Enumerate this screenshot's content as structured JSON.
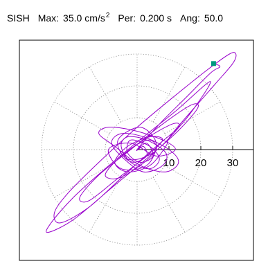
{
  "header": {
    "station": "SISH",
    "max_label": "Max:",
    "max_value": "35.0",
    "max_unit": "cm/s",
    "max_unit_exp": "2",
    "per_label": "Per:",
    "per_value": "0.200 s",
    "ang_label": "Ang:",
    "ang_value": "50.0"
  },
  "chart_data": {
    "type": "line",
    "plot": "polar particle-motion hodogram",
    "radial_ticks": [
      "10",
      "20",
      "30"
    ],
    "radial_range": [
      0,
      35
    ],
    "grid": "dotted polar rings every 10 units, radial spokes every 30 degrees",
    "colors": {
      "trace": "#9900cc",
      "end_marker": "#009980",
      "grid": "#888888",
      "axis": "#000000"
    },
    "series": [
      {
        "values": [
          [
            0,
            0
          ],
          [
            3,
            2
          ],
          [
            5,
            -2
          ],
          [
            1,
            -4
          ],
          [
            -3,
            -1
          ],
          [
            -2,
            3
          ],
          [
            4,
            1
          ],
          [
            7,
            -3
          ],
          [
            4,
            -6
          ],
          [
            -2,
            -4
          ],
          [
            -5,
            1
          ],
          [
            -3,
            4
          ],
          [
            3,
            3
          ],
          [
            9,
            -1
          ],
          [
            8,
            -5
          ],
          [
            2,
            -7
          ],
          [
            -4,
            -3
          ],
          [
            -8,
            2
          ],
          [
            -5,
            5
          ],
          [
            2,
            4
          ],
          [
            10,
            0
          ],
          [
            13,
            -4
          ],
          [
            9,
            -7
          ],
          [
            1,
            -5
          ],
          [
            -7,
            1
          ],
          [
            -12,
            5
          ],
          [
            -9,
            7
          ],
          [
            -1,
            6
          ],
          [
            8,
            3
          ],
          [
            12,
            0
          ],
          [
            6,
            -2
          ],
          [
            -2,
            2
          ],
          [
            -9,
            0
          ],
          [
            -5,
            -6
          ],
          [
            3,
            -5
          ],
          [
            6,
            2
          ],
          [
            1,
            7
          ],
          [
            -6,
            3
          ],
          [
            -3,
            -3
          ],
          [
            5,
            -1
          ],
          [
            14,
            8
          ],
          [
            20,
            16
          ],
          [
            23,
            21
          ],
          [
            21,
            20
          ],
          [
            12,
            12
          ],
          [
            2,
            4
          ],
          [
            -10,
            -6
          ],
          [
            -20,
            -15
          ],
          [
            -27,
            -23
          ],
          [
            -28,
            -26
          ],
          [
            -20,
            -22
          ],
          [
            -8,
            -12
          ],
          [
            4,
            -2
          ],
          [
            13,
            6
          ],
          [
            19,
            13
          ],
          [
            17,
            14
          ],
          [
            8,
            8
          ],
          [
            -2,
            0
          ],
          [
            -12,
            -8
          ],
          [
            -18,
            -15
          ],
          [
            -15,
            -16
          ],
          [
            -6,
            -9
          ],
          [
            3,
            -2
          ],
          [
            8,
            3
          ],
          [
            4,
            4
          ],
          [
            -3,
            1
          ],
          [
            -7,
            -4
          ],
          [
            -3,
            -7
          ],
          [
            4,
            -5
          ],
          [
            9,
            1
          ],
          [
            11,
            5
          ],
          [
            24,
            20
          ],
          [
            30,
            27
          ],
          [
            31,
            30
          ],
          [
            29,
            30
          ],
          [
            22,
            25
          ],
          [
            12,
            17
          ],
          [
            0,
            7
          ],
          [
            -12,
            -4
          ],
          [
            -22,
            -14
          ],
          [
            -26,
            -20
          ],
          [
            -24,
            -23
          ],
          [
            -15,
            -18
          ],
          [
            -4,
            -8
          ],
          [
            6,
            1
          ],
          [
            13,
            7
          ],
          [
            11,
            8
          ],
          [
            2,
            3
          ],
          [
            -6,
            -3
          ],
          [
            -10,
            -8
          ],
          [
            -6,
            -9
          ],
          [
            1,
            -5
          ],
          [
            6,
            0
          ],
          [
            4,
            3
          ],
          [
            -1,
            1
          ],
          [
            -4,
            -2
          ],
          [
            -1,
            -4
          ],
          [
            3,
            -2
          ],
          [
            2,
            1
          ],
          [
            0,
            0
          ],
          [
            7,
            8
          ],
          [
            15,
            16
          ],
          [
            23,
            24
          ],
          [
            26,
            26
          ],
          [
            24,
            27
          ]
        ]
      }
    ]
  }
}
